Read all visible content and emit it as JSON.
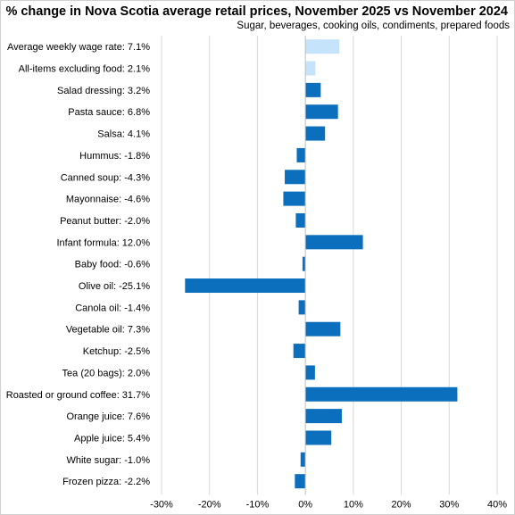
{
  "chart_data": {
    "type": "bar",
    "orientation": "horizontal",
    "title": "% change in Nova Scotia average retail prices, November 2025 vs November 2024",
    "subtitle": "Sugar, beverages,  cooking oils, condiments, prepared foods",
    "xlim": [
      -30,
      40
    ],
    "ticks": [
      -30,
      -20,
      -10,
      0,
      10,
      20,
      30,
      40
    ],
    "tick_labels": [
      "-30%",
      "-20%",
      "-10%",
      "0%",
      "10%",
      "20%",
      "30%",
      "40%"
    ],
    "grid": true,
    "colors": {
      "highlight": "#c5e3fa",
      "default": "#0b6fbd"
    },
    "categories": [
      {
        "label": "Average weekly wage rate: 7.1%",
        "value": 7.1,
        "highlight": true
      },
      {
        "label": "All-items excluding food: 2.1%",
        "value": 2.1,
        "highlight": true
      },
      {
        "label": "Salad dressing: 3.2%",
        "value": 3.2,
        "highlight": false
      },
      {
        "label": "Pasta sauce: 6.8%",
        "value": 6.8,
        "highlight": false
      },
      {
        "label": "Salsa: 4.1%",
        "value": 4.1,
        "highlight": false
      },
      {
        "label": "Hummus: -1.8%",
        "value": -1.8,
        "highlight": false
      },
      {
        "label": "Canned soup: -4.3%",
        "value": -4.3,
        "highlight": false
      },
      {
        "label": "Mayonnaise: -4.6%",
        "value": -4.6,
        "highlight": false
      },
      {
        "label": "Peanut butter: -2.0%",
        "value": -2.0,
        "highlight": false
      },
      {
        "label": "Infant formula: 12.0%",
        "value": 12.0,
        "highlight": false
      },
      {
        "label": "Baby food: -0.6%",
        "value": -0.6,
        "highlight": false
      },
      {
        "label": "Olive oil: -25.1%",
        "value": -25.1,
        "highlight": false
      },
      {
        "label": "Canola oil: -1.4%",
        "value": -1.4,
        "highlight": false
      },
      {
        "label": "Vegetable oil: 7.3%",
        "value": 7.3,
        "highlight": false
      },
      {
        "label": "Ketchup: -2.5%",
        "value": -2.5,
        "highlight": false
      },
      {
        "label": "Tea (20 bags): 2.0%",
        "value": 2.0,
        "highlight": false
      },
      {
        "label": "Roasted or ground coffee: 31.7%",
        "value": 31.7,
        "highlight": false
      },
      {
        "label": "Orange juice: 7.6%",
        "value": 7.6,
        "highlight": false
      },
      {
        "label": "Apple juice: 5.4%",
        "value": 5.4,
        "highlight": false
      },
      {
        "label": "White sugar: -1.0%",
        "value": -1.0,
        "highlight": false
      },
      {
        "label": "Frozen pizza: -2.2%",
        "value": -2.2,
        "highlight": false
      }
    ]
  }
}
